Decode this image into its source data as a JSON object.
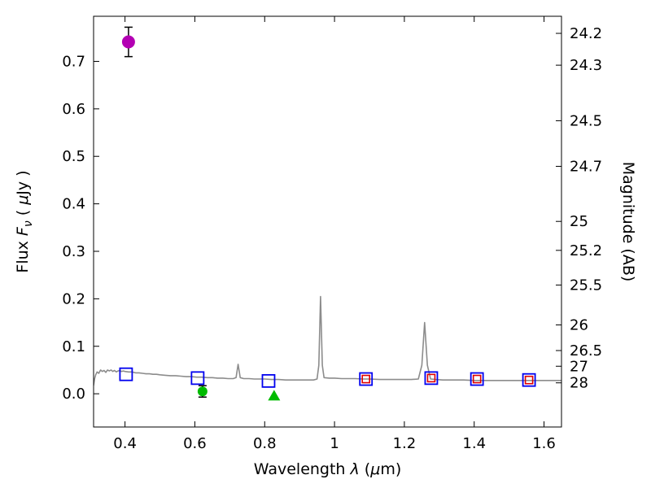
{
  "window": {
    "background": "#ffffff"
  },
  "chart_data": {
    "type": "line",
    "description": "Spectral energy distribution plot: gray model spectrum with photometric data points (open squares) and detections/limits (filled markers)",
    "title": "",
    "xlabel": "Wavelength λ (μm)",
    "ylabel_left": "Flux Fν ( μJy )",
    "ylabel_right": "Magnitude (AB)",
    "xlabel_parts": [
      {
        "t": "Wavelength  "
      },
      {
        "t": "λ",
        "italic": true
      },
      {
        "t": " ("
      },
      {
        "t": "μ",
        "italic": true
      },
      {
        "t": "m)"
      }
    ],
    "ylabel_left_parts": [
      {
        "t": "Flux  "
      },
      {
        "t": "F",
        "italic": true
      },
      {
        "t": "ν",
        "italic": true,
        "sub": true
      },
      {
        "t": "  ( "
      },
      {
        "t": "μ",
        "italic": true
      },
      {
        "t": "Jy )"
      }
    ],
    "ylabel_right_parts": [
      {
        "t": "Magnitude (AB)"
      }
    ],
    "xlim": [
      0.31,
      1.65
    ],
    "ylim": [
      -0.07,
      0.795
    ],
    "grid": false,
    "legend": "none",
    "x_ticks": [
      {
        "v": 0.4,
        "label": "0.4"
      },
      {
        "v": 0.6,
        "label": "0.6"
      },
      {
        "v": 0.8,
        "label": "0.8"
      },
      {
        "v": 1.0,
        "label": "1"
      },
      {
        "v": 1.2,
        "label": "1.2"
      },
      {
        "v": 1.4,
        "label": "1.4"
      },
      {
        "v": 1.6,
        "label": "1.6"
      }
    ],
    "y_ticks_left": [
      {
        "v": 0.0,
        "label": "0.0"
      },
      {
        "v": 0.1,
        "label": "0.1"
      },
      {
        "v": 0.2,
        "label": "0.2"
      },
      {
        "v": 0.3,
        "label": "0.3"
      },
      {
        "v": 0.4,
        "label": "0.4"
      },
      {
        "v": 0.5,
        "label": "0.5"
      },
      {
        "v": 0.6,
        "label": "0.6"
      },
      {
        "v": 0.7,
        "label": "0.7"
      }
    ],
    "y_ticks_right": [
      {
        "label": "24.2",
        "flux": 0.759
      },
      {
        "label": "24.3",
        "flux": 0.692
      },
      {
        "label": "24.5",
        "flux": 0.575
      },
      {
        "label": "24.7",
        "flux": 0.479
      },
      {
        "label": "25",
        "flux": 0.363
      },
      {
        "label": "25.2",
        "flux": 0.302
      },
      {
        "label": "25.5",
        "flux": 0.229
      },
      {
        "label": "26",
        "flux": 0.145
      },
      {
        "label": "26.5",
        "flux": 0.091
      },
      {
        "label": "27",
        "flux": 0.058
      },
      {
        "label": "28",
        "flux": 0.023
      }
    ],
    "series": [
      {
        "name": "model-spectrum",
        "type": "line",
        "color": "#8c8c8c",
        "width": 1.6,
        "points": [
          [
            0.31,
            0.018
          ],
          [
            0.313,
            0.032
          ],
          [
            0.316,
            0.04
          ],
          [
            0.32,
            0.046
          ],
          [
            0.325,
            0.043
          ],
          [
            0.33,
            0.05
          ],
          [
            0.335,
            0.047
          ],
          [
            0.34,
            0.049
          ],
          [
            0.345,
            0.045
          ],
          [
            0.35,
            0.05
          ],
          [
            0.355,
            0.048
          ],
          [
            0.36,
            0.05
          ],
          [
            0.365,
            0.047
          ],
          [
            0.37,
            0.049
          ],
          [
            0.375,
            0.046
          ],
          [
            0.38,
            0.048
          ],
          [
            0.385,
            0.049
          ],
          [
            0.39,
            0.047
          ],
          [
            0.395,
            0.048
          ],
          [
            0.4,
            0.047
          ],
          [
            0.41,
            0.046
          ],
          [
            0.42,
            0.046
          ],
          [
            0.43,
            0.044
          ],
          [
            0.44,
            0.044
          ],
          [
            0.45,
            0.043
          ],
          [
            0.46,
            0.042
          ],
          [
            0.47,
            0.042
          ],
          [
            0.48,
            0.041
          ],
          [
            0.49,
            0.041
          ],
          [
            0.5,
            0.04
          ],
          [
            0.515,
            0.039
          ],
          [
            0.53,
            0.038
          ],
          [
            0.545,
            0.038
          ],
          [
            0.56,
            0.037
          ],
          [
            0.575,
            0.036
          ],
          [
            0.59,
            0.036
          ],
          [
            0.605,
            0.035
          ],
          [
            0.62,
            0.035
          ],
          [
            0.635,
            0.034
          ],
          [
            0.65,
            0.034
          ],
          [
            0.665,
            0.033
          ],
          [
            0.68,
            0.033
          ],
          [
            0.695,
            0.032
          ],
          [
            0.71,
            0.032
          ],
          [
            0.718,
            0.034
          ],
          [
            0.724,
            0.062
          ],
          [
            0.73,
            0.034
          ],
          [
            0.74,
            0.032
          ],
          [
            0.755,
            0.032
          ],
          [
            0.77,
            0.031
          ],
          [
            0.785,
            0.031
          ],
          [
            0.8,
            0.031
          ],
          [
            0.82,
            0.03
          ],
          [
            0.84,
            0.03
          ],
          [
            0.86,
            0.029
          ],
          [
            0.88,
            0.029
          ],
          [
            0.9,
            0.029
          ],
          [
            0.92,
            0.029
          ],
          [
            0.94,
            0.029
          ],
          [
            0.95,
            0.031
          ],
          [
            0.955,
            0.06
          ],
          [
            0.96,
            0.205
          ],
          [
            0.965,
            0.06
          ],
          [
            0.97,
            0.034
          ],
          [
            0.985,
            0.033
          ],
          [
            1.0,
            0.033
          ],
          [
            1.02,
            0.032
          ],
          [
            1.04,
            0.032
          ],
          [
            1.06,
            0.032
          ],
          [
            1.08,
            0.031
          ],
          [
            1.1,
            0.031
          ],
          [
            1.13,
            0.03
          ],
          [
            1.16,
            0.03
          ],
          [
            1.19,
            0.03
          ],
          [
            1.22,
            0.03
          ],
          [
            1.24,
            0.031
          ],
          [
            1.25,
            0.06
          ],
          [
            1.258,
            0.15
          ],
          [
            1.266,
            0.06
          ],
          [
            1.275,
            0.031
          ],
          [
            1.29,
            0.03
          ],
          [
            1.31,
            0.029
          ],
          [
            1.34,
            0.029
          ],
          [
            1.37,
            0.029
          ],
          [
            1.4,
            0.028
          ],
          [
            1.44,
            0.028
          ],
          [
            1.48,
            0.028
          ],
          [
            1.52,
            0.028
          ],
          [
            1.56,
            0.028
          ],
          [
            1.6,
            0.028
          ],
          [
            1.65,
            0.028
          ]
        ]
      },
      {
        "name": "model-photometry-squares",
        "type": "open-square",
        "color": "#0000ee",
        "size": 15,
        "stroke": 1.8,
        "points": [
          {
            "x": 0.403,
            "y": 0.041
          },
          {
            "x": 0.608,
            "y": 0.033
          },
          {
            "x": 0.811,
            "y": 0.027
          },
          {
            "x": 1.09,
            "y": 0.031
          },
          {
            "x": 1.277,
            "y": 0.033
          },
          {
            "x": 1.408,
            "y": 0.031
          },
          {
            "x": 1.557,
            "y": 0.029
          }
        ]
      },
      {
        "name": "observed-photometry-squares",
        "type": "open-square",
        "color": "#e00000",
        "size": 9,
        "stroke": 1.6,
        "points": [
          {
            "x": 1.09,
            "y": 0.031
          },
          {
            "x": 1.277,
            "y": 0.033
          },
          {
            "x": 1.408,
            "y": 0.031
          },
          {
            "x": 1.557,
            "y": 0.029
          }
        ]
      },
      {
        "name": "magenta-detection-point",
        "type": "filled-circle",
        "color": "#b300b3",
        "size": 15,
        "points": [
          {
            "x": 0.41,
            "y": 0.741,
            "yerr": 0.031
          }
        ]
      },
      {
        "name": "green-detection-point",
        "type": "filled-circle",
        "color": "#00bb00",
        "size": 11,
        "points": [
          {
            "x": 0.622,
            "y": 0.005,
            "yerr": 0.012
          }
        ]
      },
      {
        "name": "green-limit-triangle",
        "type": "filled-triangle",
        "color": "#00bb00",
        "size": 13,
        "points": [
          {
            "x": 0.827,
            "y": -0.003
          }
        ]
      }
    ]
  }
}
